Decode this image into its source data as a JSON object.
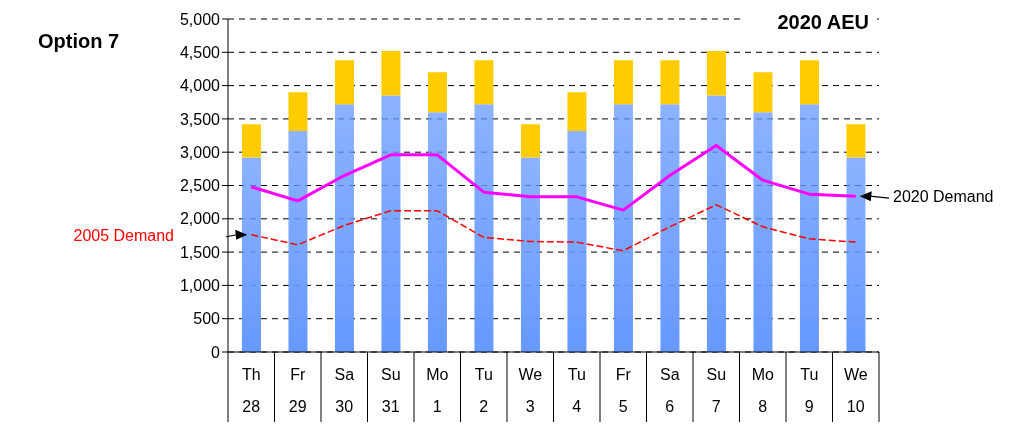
{
  "chart_data": {
    "type": "bar",
    "title": "Option 7",
    "subtitle": "2020 AEU",
    "categories": [
      "Th\n28",
      "Fr\n29",
      "Sa\n30",
      "Su\n31",
      "Mo\n1",
      "Tu\n2",
      "We\n3",
      "Tu\n4",
      "Fr\n5",
      "Sa\n6",
      "Su\n7",
      "Mo\n8",
      "Tu\n9",
      "We\n10"
    ],
    "stacked": true,
    "series": [
      {
        "color": "#6699ff",
        "values": [
          2920,
          3320,
          3720,
          3850,
          3600,
          3720,
          2920,
          3320,
          3720,
          3720,
          3850,
          3600,
          3720,
          2920
        ]
      },
      {
        "color": "#ffcc00",
        "values": [
          500,
          580,
          660,
          670,
          600,
          660,
          500,
          580,
          660,
          660,
          670,
          600,
          660,
          500
        ]
      },
      {
        "type": "line",
        "name": "2020 Demand",
        "color": "#ff00ff",
        "line_style": "solid",
        "values": [
          2480,
          2270,
          2650,
          2960,
          2960,
          2400,
          2330,
          2330,
          2130,
          2650,
          3100,
          2580,
          2370,
          2340
        ]
      },
      {
        "type": "line",
        "name": "2005 Demand",
        "color": "#ff0000",
        "line_style": "dashed",
        "values": [
          1760,
          1610,
          1900,
          2120,
          2120,
          1720,
          1660,
          1650,
          1520,
          1880,
          2210,
          1880,
          1700,
          1650
        ]
      }
    ],
    "ylim": [
      0,
      5000
    ],
    "yticks": [
      0,
      500,
      {
        "value": 1000,
        "label": "1,000"
      },
      {
        "value": 1500,
        "label": "1,500"
      },
      {
        "value": 2000,
        "label": "2,000"
      },
      {
        "value": 2500,
        "label": "2,500"
      },
      {
        "value": 3000,
        "label": "3,000"
      },
      {
        "value": 3500,
        "label": "3,500"
      },
      {
        "value": 4000,
        "label": "4,000"
      },
      {
        "value": 4500,
        "label": "4,500"
      },
      {
        "value": 5000,
        "label": "5,000"
      }
    ],
    "grid": "y",
    "legend": false,
    "marker": "none"
  }
}
